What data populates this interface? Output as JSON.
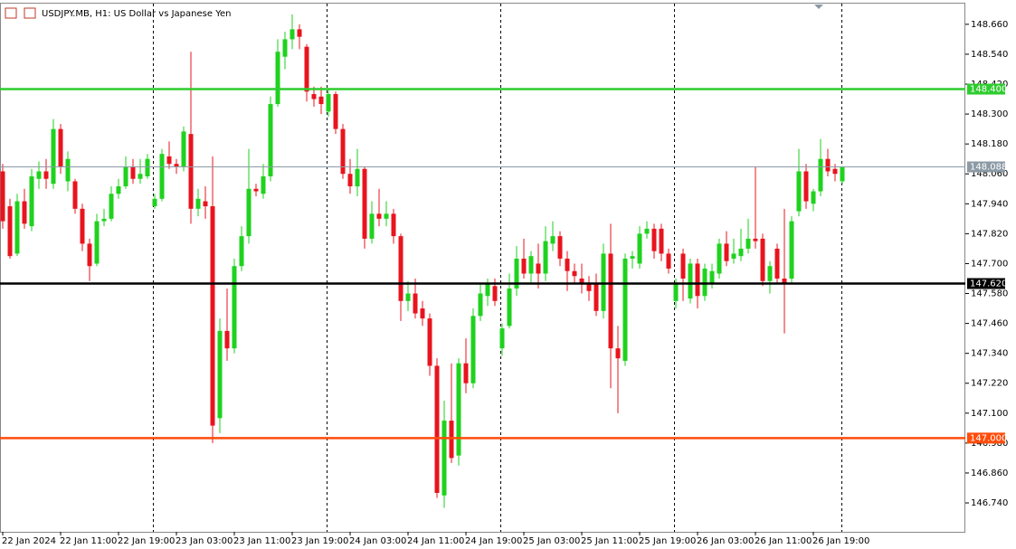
{
  "chart_data": {
    "type": "candlestick",
    "title": "USDJPY.MB, H1:  US Dollar vs Japanese Yen",
    "categories": [
      "22 Jan 2024",
      null,
      null,
      null,
      null,
      null,
      null,
      null,
      "22 Jan 11:00",
      null,
      null,
      null,
      null,
      null,
      null,
      null,
      "22 Jan 19:00",
      null,
      null,
      null,
      null,
      null,
      null,
      null,
      "23 Jan 03:00",
      null,
      null,
      null,
      null,
      null,
      null,
      null,
      "23 Jan 11:00",
      null,
      null,
      null,
      null,
      null,
      null,
      null,
      "23 Jan 19:00",
      null,
      null,
      null,
      null,
      null,
      null,
      null,
      "24 Jan 03:00",
      null,
      null,
      null,
      null,
      null,
      null,
      null,
      "24 Jan 11:00",
      null,
      null,
      null,
      null,
      null,
      null,
      null,
      "24 Jan 19:00",
      null,
      null,
      null,
      null,
      null,
      null,
      null,
      "25 Jan 03:00",
      null,
      null,
      null,
      null,
      null,
      null,
      null,
      "25 Jan 11:00",
      null,
      null,
      null,
      null,
      null,
      null,
      null,
      "25 Jan 19:00",
      null,
      null,
      null,
      null,
      null,
      null,
      null,
      "26 Jan 03:00",
      null,
      null,
      null,
      null,
      null,
      null,
      null,
      "26 Jan 11:00",
      null,
      null,
      null,
      null,
      null,
      null,
      null,
      "26 Jan 19:00",
      null,
      null,
      null,
      null
    ],
    "open": [
      148.07,
      147.93,
      147.74,
      147.95,
      147.85,
      148.04,
      148.07,
      148.02,
      148.24,
      148.03,
      148.03,
      147.92,
      147.78,
      147.7,
      147.87,
      147.88,
      147.98,
      148.01,
      148.09,
      148.04,
      148.05,
      147.93,
      147.96,
      148.13,
      148.1,
      148.09,
      148.22,
      147.92,
      147.95,
      147.93,
      147.08,
      147.43,
      147.36,
      147.69,
      147.81,
      148.0,
      147.98,
      148.05,
      148.34,
      148.53,
      148.6,
      148.64,
      148.57,
      148.38,
      148.37,
      148.31,
      148.38,
      148.24,
      148.06,
      148.01,
      148.08,
      147.8,
      147.9,
      147.88,
      147.9,
      147.81,
      147.55,
      147.58,
      147.52,
      147.48,
      147.29,
      146.77,
      147.07,
      146.93,
      147.3,
      147.22,
      147.49,
      147.57,
      147.61,
      147.36,
      147.45,
      147.6,
      147.72,
      147.66,
      147.7,
      147.66,
      147.78,
      147.81,
      147.72,
      147.67,
      147.64,
      147.62,
      147.62,
      147.51,
      147.74,
      147.36,
      147.31,
      147.72,
      147.7,
      147.82,
      147.84,
      147.84,
      147.74,
      147.55,
      147.74,
      147.56,
      147.7,
      147.57,
      147.62,
      147.66,
      147.78,
      147.72,
      147.73,
      147.76,
      147.8,
      147.8,
      147.63,
      147.76,
      147.64,
      147.64,
      147.91,
      148.07,
      147.94,
      147.99,
      148.12,
      148.08,
      148.03
    ],
    "high": [
      148.1,
      147.96,
      147.98,
      148.0,
      148.08,
      148.11,
      148.12,
      148.28,
      148.26,
      148.15,
      148.04,
      147.94,
      147.8,
      147.9,
      147.92,
      148.01,
      148.04,
      148.13,
      148.12,
      148.12,
      148.14,
      147.98,
      148.16,
      148.19,
      148.12,
      148.25,
      148.55,
      148.0,
      148.01,
      148.13,
      147.48,
      147.6,
      147.72,
      147.85,
      148.16,
      148.02,
      148.1,
      148.37,
      148.6,
      148.63,
      148.7,
      148.66,
      148.58,
      148.41,
      148.41,
      148.4,
      148.39,
      148.26,
      148.12,
      148.16,
      148.09,
      147.95,
      148.0,
      147.95,
      147.92,
      147.82,
      147.63,
      147.64,
      147.55,
      147.5,
      147.32,
      147.15,
      147.3,
      147.32,
      147.4,
      147.52,
      147.62,
      147.64,
      147.64,
      147.46,
      147.66,
      147.77,
      147.8,
      147.75,
      147.78,
      147.85,
      147.87,
      147.83,
      147.75,
      147.7,
      147.7,
      147.65,
      147.66,
      147.78,
      147.86,
      147.45,
      147.74,
      147.75,
      147.85,
      147.87,
      147.86,
      147.86,
      147.76,
      147.64,
      147.76,
      147.72,
      147.72,
      147.7,
      147.7,
      147.8,
      147.83,
      147.8,
      147.84,
      147.88,
      148.09,
      147.82,
      147.71,
      147.78,
      147.92,
      147.89,
      148.16,
      148.1,
      148.0,
      148.2,
      148.16,
      148.1,
      148.09
    ],
    "low": [
      147.84,
      147.72,
      147.73,
      147.84,
      147.83,
      148.0,
      148.0,
      148.0,
      148.06,
      147.99,
      147.9,
      147.75,
      147.63,
      147.69,
      147.85,
      147.87,
      147.96,
      148.0,
      148.02,
      148.02,
      148.04,
      147.92,
      147.95,
      148.08,
      148.06,
      148.07,
      147.86,
      147.89,
      147.88,
      146.98,
      147.02,
      147.31,
      147.34,
      147.67,
      147.78,
      147.97,
      147.96,
      148.03,
      148.33,
      148.48,
      148.56,
      148.56,
      148.35,
      148.33,
      148.3,
      148.29,
      148.22,
      148.04,
      147.98,
      147.97,
      147.76,
      147.78,
      147.85,
      147.85,
      147.78,
      147.47,
      147.51,
      147.48,
      147.45,
      147.25,
      146.76,
      146.72,
      146.9,
      146.89,
      147.18,
      147.2,
      147.47,
      147.53,
      147.53,
      147.33,
      147.44,
      147.57,
      147.64,
      147.62,
      147.6,
      147.63,
      147.75,
      147.69,
      147.59,
      147.62,
      147.58,
      147.55,
      147.49,
      147.48,
      147.2,
      147.1,
      147.29,
      147.68,
      147.68,
      147.8,
      147.72,
      147.71,
      147.66,
      147.52,
      147.55,
      147.54,
      147.52,
      147.55,
      147.6,
      147.64,
      147.69,
      147.7,
      147.71,
      147.74,
      147.76,
      147.61,
      147.58,
      147.62,
      147.42,
      147.62,
      147.89,
      147.92,
      147.91,
      147.97,
      148.05,
      148.03,
      148.02
    ],
    "close": [
      147.87,
      147.73,
      147.95,
      147.86,
      148.05,
      148.07,
      148.04,
      148.24,
      148.09,
      148.12,
      147.92,
      147.78,
      147.69,
      147.87,
      147.88,
      147.98,
      148.01,
      148.09,
      148.04,
      148.06,
      148.12,
      147.96,
      148.14,
      148.1,
      148.09,
      148.23,
      147.92,
      147.96,
      147.93,
      147.05,
      147.43,
      147.36,
      147.69,
      147.81,
      148.0,
      147.99,
      148.05,
      148.34,
      148.55,
      148.6,
      148.64,
      148.61,
      148.39,
      148.36,
      148.34,
      148.38,
      148.24,
      148.06,
      148.01,
      148.08,
      147.8,
      147.9,
      147.88,
      147.9,
      147.81,
      147.55,
      147.58,
      147.5,
      147.48,
      147.29,
      146.78,
      147.07,
      146.92,
      147.3,
      147.22,
      147.49,
      147.58,
      147.62,
      147.55,
      147.44,
      147.6,
      147.72,
      147.66,
      147.73,
      147.66,
      147.79,
      147.81,
      147.72,
      147.67,
      147.65,
      147.62,
      147.59,
      147.51,
      147.74,
      147.36,
      147.32,
      147.72,
      147.73,
      147.82,
      147.84,
      147.75,
      147.74,
      147.68,
      147.62,
      147.64,
      147.7,
      147.57,
      147.68,
      147.67,
      147.78,
      147.71,
      147.74,
      147.76,
      147.8,
      147.79,
      147.63,
      147.69,
      147.64,
      147.62,
      147.87,
      148.07,
      147.95,
      147.99,
      148.12,
      148.07,
      148.06,
      148.09
    ],
    "up_color": "#1ed21e",
    "down_color": "#e8141e",
    "ylim": [
      146.624,
      148.743
    ],
    "yticks": [
      {
        "value": 148.66,
        "label": "148.660"
      },
      {
        "value": 148.54,
        "label": "148.540"
      },
      {
        "value": 148.42,
        "label": "148.420"
      },
      {
        "value": 148.3,
        "label": "148.300"
      },
      {
        "value": 148.18,
        "label": "148.180"
      },
      {
        "value": 148.06,
        "label": "148.060"
      },
      {
        "value": 147.94,
        "label": "147.940"
      },
      {
        "value": 147.82,
        "label": "147.820"
      },
      {
        "value": 147.7,
        "label": "147.700"
      },
      {
        "value": 147.58,
        "label": "147.580"
      },
      {
        "value": 147.46,
        "label": "147.460"
      },
      {
        "value": 147.34,
        "label": "147.340"
      },
      {
        "value": 147.22,
        "label": "147.220"
      },
      {
        "value": 147.1,
        "label": "147.100"
      },
      {
        "value": 146.98,
        "label": "146.980"
      },
      {
        "value": 146.86,
        "label": "146.860"
      },
      {
        "value": 146.74,
        "label": "146.740"
      }
    ],
    "levels": [
      {
        "value": 148.4,
        "label": "148.400",
        "color": "#2ecc2e"
      },
      {
        "value": 148.088,
        "label": "148.088",
        "color": "#8c9aa6"
      },
      {
        "value": 147.62,
        "label": "147.620",
        "color": "#000000"
      },
      {
        "value": 147.0,
        "label": "147.000",
        "color": "#ff4c0a"
      }
    ]
  }
}
